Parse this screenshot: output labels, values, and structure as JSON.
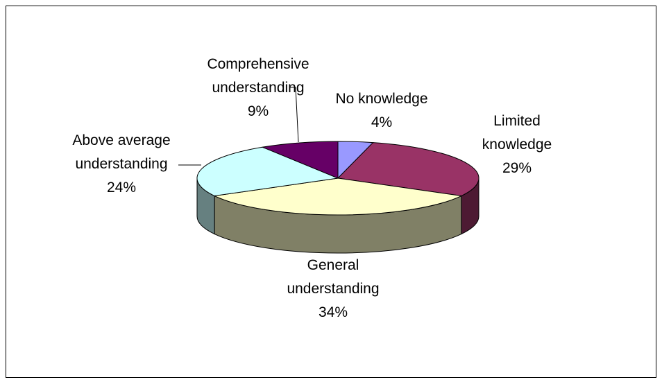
{
  "chart_data": {
    "type": "pie3d",
    "categories": [
      "No knowledge",
      "Limited knowledge",
      "General understanding",
      "Above average understanding",
      "Comprehensive understanding"
    ],
    "values": [
      4,
      29,
      34,
      24,
      9
    ],
    "value_labels": [
      "4%",
      "29%",
      "34%",
      "24%",
      "9%"
    ],
    "colors": [
      "#9999ff",
      "#993366",
      "#ffffcc",
      "#ccffff",
      "#660066"
    ]
  }
}
